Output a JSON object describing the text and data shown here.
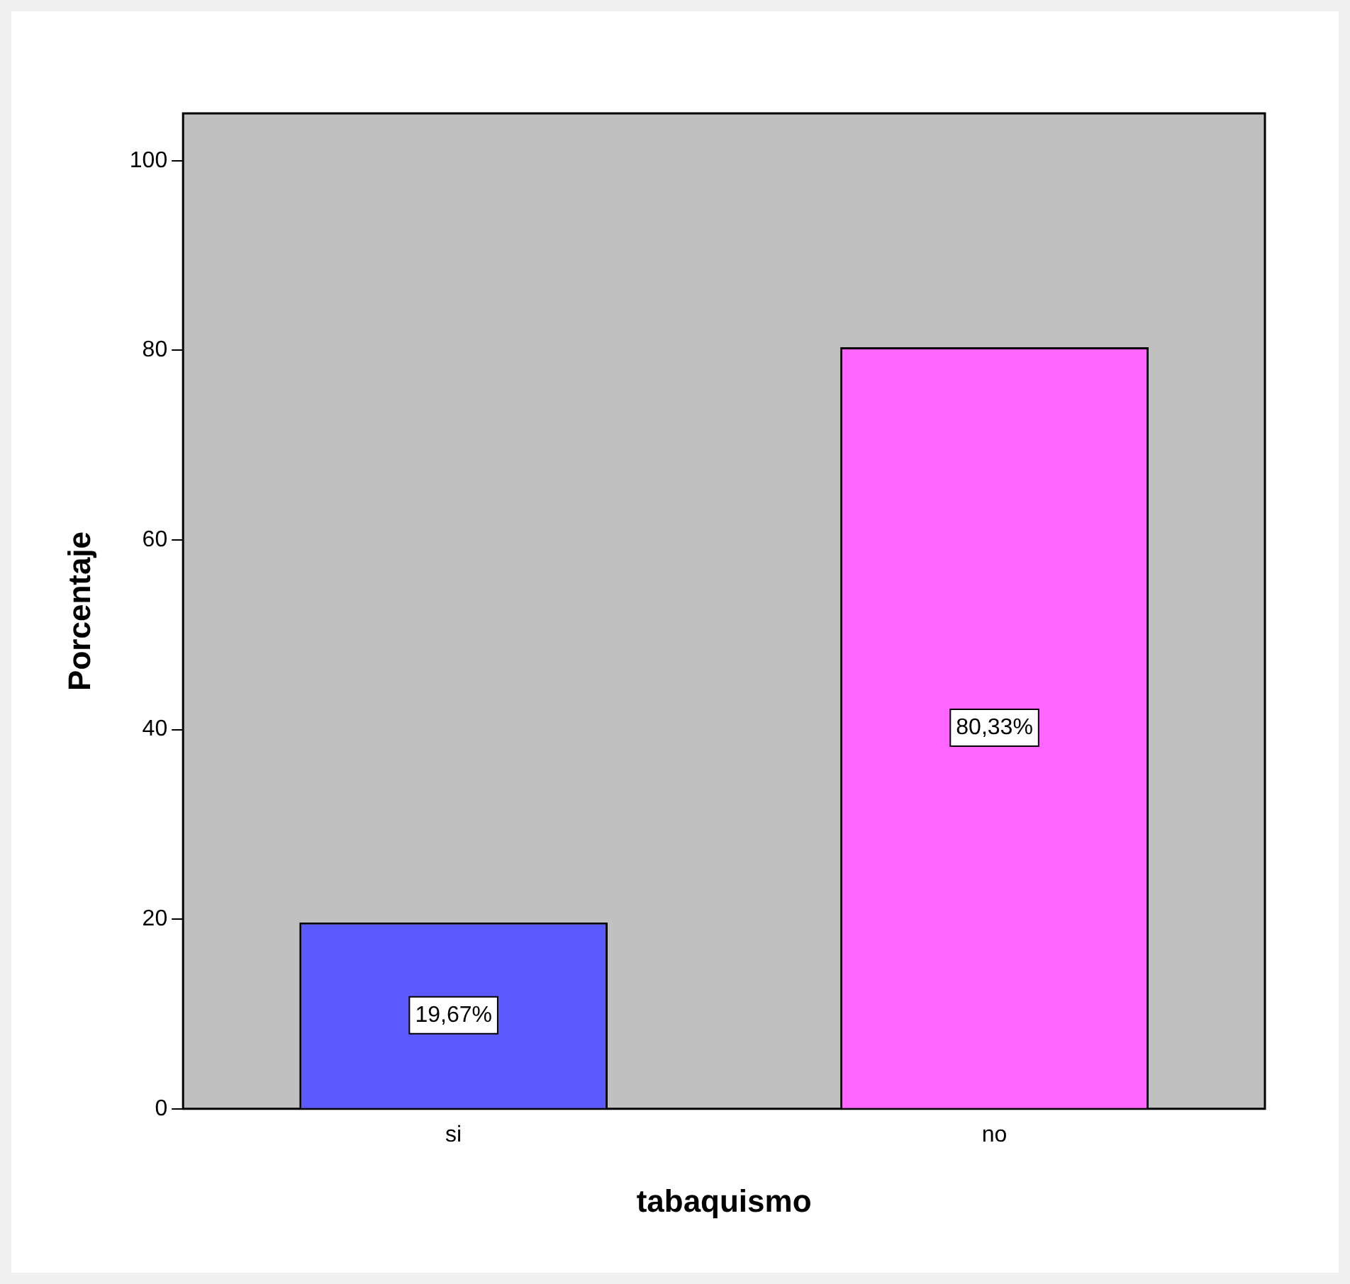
{
  "chart_data": {
    "type": "bar",
    "xlabel": "tabaquismo",
    "ylabel": "Porcentaje",
    "categories": [
      "si",
      "no"
    ],
    "values": [
      19.67,
      80.33
    ],
    "colors": [
      "#5a5aff",
      "#ff66ff"
    ],
    "value_labels": [
      "19,67%",
      "80,33%"
    ],
    "ylim": [
      0,
      105
    ],
    "yticks": [
      0,
      20,
      40,
      60,
      80,
      100
    ],
    "grid": false,
    "legend": false
  }
}
